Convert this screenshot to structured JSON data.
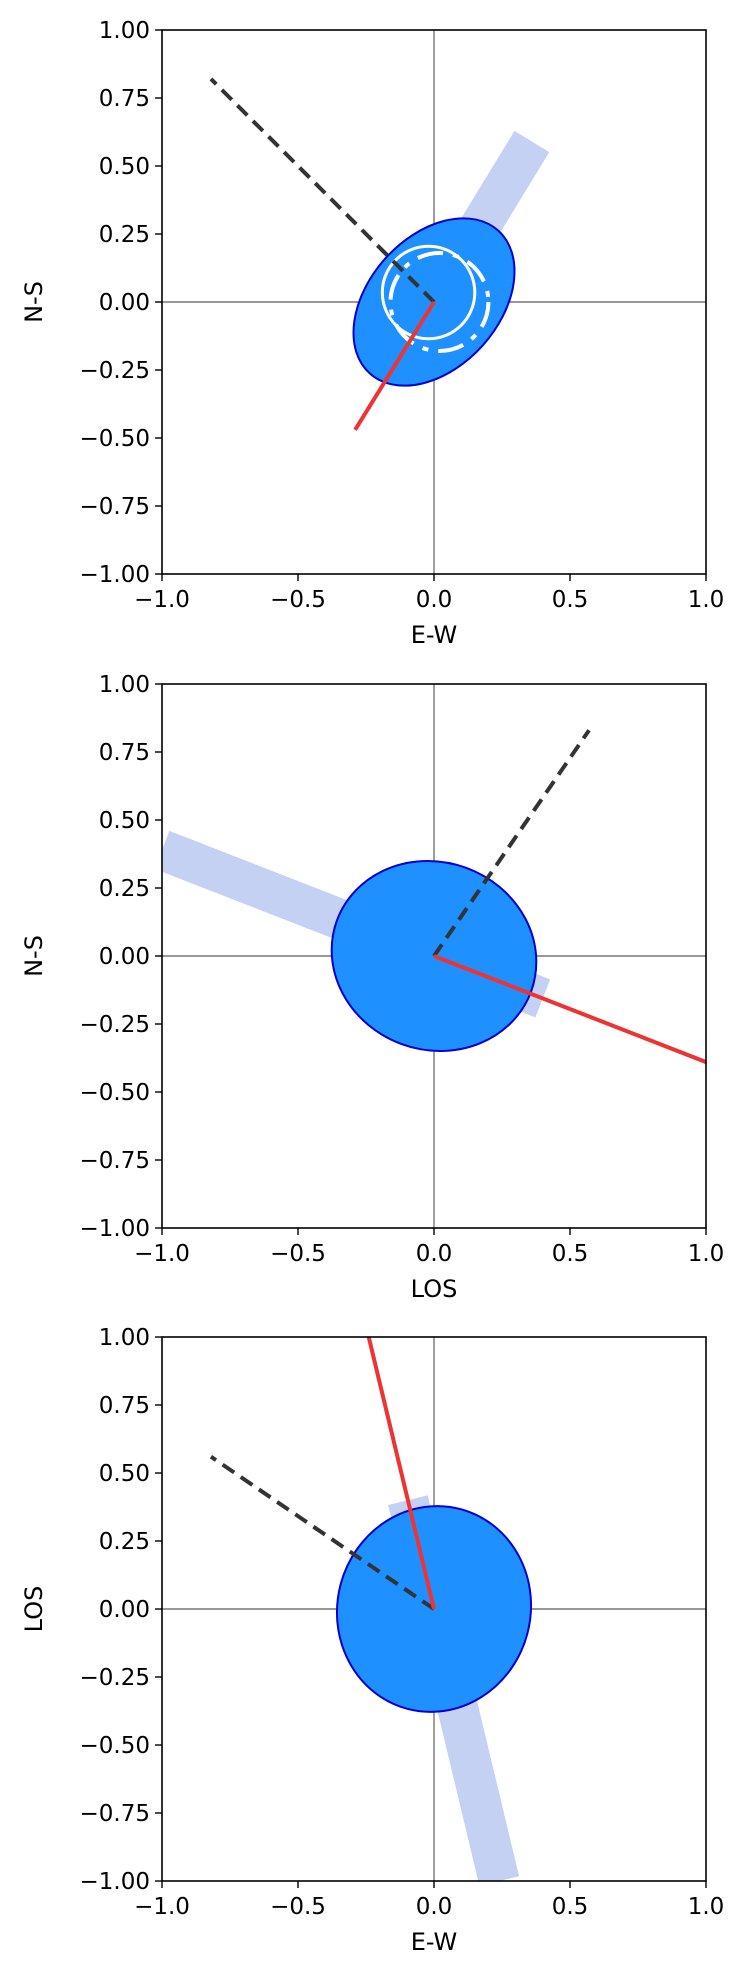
{
  "chart_data": [
    {
      "type": "scatter",
      "xlabel": "E-W",
      "ylabel": "N-S",
      "xlim": [
        -1.0,
        1.0
      ],
      "ylim": [
        -1.0,
        1.0
      ],
      "xticks": [
        "−1.0",
        "−0.5",
        "0.0",
        "0.5",
        "1.0"
      ],
      "yticks": [
        "1.00",
        "0.75",
        "0.50",
        "0.25",
        "0.00",
        "−0.25",
        "−0.50",
        "−0.75",
        "−1.00"
      ],
      "zero_lines": true,
      "band": {
        "x0": 0.0,
        "y0": 0.0,
        "x1": 0.36,
        "y1": 0.59,
        "extend": [
          -0.4,
          1.0
        ],
        "width": 0.15,
        "color": "#c5d1f2"
      },
      "ellipse": {
        "cx": 0.0,
        "cy": 0.0,
        "rx": 0.353,
        "ry": 0.24,
        "angle_deg": 48,
        "fill": "#1e90ff",
        "edge": "#0000d0"
      },
      "inner_circle": {
        "cx": -0.02,
        "cy": 0.035,
        "r": 0.17,
        "color": "#ffffff",
        "dashed": false
      },
      "inner_dashed_arc": {
        "cx": 0.02,
        "cy": 0.0,
        "r": 0.18,
        "color": "#ffffff",
        "dashed": true
      },
      "dashed_line": {
        "x": [
          0.0,
          -0.82
        ],
        "y": [
          0.0,
          0.82
        ],
        "color": "#333333"
      },
      "solid_line": {
        "x": [
          0.0,
          -0.29
        ],
        "y": [
          0.0,
          -0.47
        ],
        "color": "#ee3333"
      }
    },
    {
      "type": "scatter",
      "xlabel": "LOS",
      "ylabel": "N-S",
      "xlim": [
        -1.0,
        1.0
      ],
      "ylim": [
        -1.0,
        1.0
      ],
      "xticks": [
        "−1.0",
        "−0.5",
        "0.0",
        "0.5",
        "1.0"
      ],
      "yticks": [
        "1.00",
        "0.75",
        "0.50",
        "0.25",
        "0.00",
        "−0.25",
        "−0.50",
        "−0.75",
        "−1.00"
      ],
      "zero_lines": true,
      "band": {
        "x0": 0.0,
        "y0": 0.0,
        "x1": -1.0,
        "y1": 0.39,
        "extend": [
          -0.4,
          1.0
        ],
        "width": 0.15,
        "color": "#c5d1f2"
      },
      "ellipse": {
        "cx": 0.0,
        "cy": 0.0,
        "rx": 0.38,
        "ry": 0.345,
        "angle_deg": -20,
        "fill": "#1e90ff",
        "edge": "#0000d0"
      },
      "dashed_line": {
        "x": [
          0.0,
          0.57
        ],
        "y": [
          0.0,
          0.83
        ],
        "color": "#333333"
      },
      "solid_line": {
        "x": [
          0.0,
          1.0
        ],
        "y": [
          0.0,
          -0.39
        ],
        "color": "#ee3333"
      }
    },
    {
      "type": "scatter",
      "xlabel": "E-W",
      "ylabel": "LOS",
      "xlim": [
        -1.0,
        1.0
      ],
      "ylim": [
        -1.0,
        1.0
      ],
      "xticks": [
        "−1.0",
        "−0.5",
        "0.0",
        "0.5",
        "1.0"
      ],
      "yticks": [
        "1.00",
        "0.75",
        "0.50",
        "0.25",
        "0.00",
        "−0.25",
        "−0.50",
        "−0.75",
        "−1.00"
      ],
      "zero_lines": true,
      "band": {
        "x0": 0.0,
        "y0": 0.0,
        "x1": 0.24,
        "y1": -1.0,
        "extend": [
          -0.4,
          1.0
        ],
        "width": 0.15,
        "color": "#c5d1f2"
      },
      "ellipse": {
        "cx": 0.0,
        "cy": 0.0,
        "rx": 0.38,
        "ry": 0.355,
        "angle_deg": 75,
        "fill": "#1e90ff",
        "edge": "#0000d0"
      },
      "dashed_line": {
        "x": [
          0.0,
          -0.82
        ],
        "y": [
          0.0,
          0.56
        ],
        "color": "#333333"
      },
      "solid_line": {
        "x": [
          0.0,
          -0.24
        ],
        "y": [
          0.0,
          1.0
        ],
        "color": "#ee3333"
      }
    }
  ]
}
